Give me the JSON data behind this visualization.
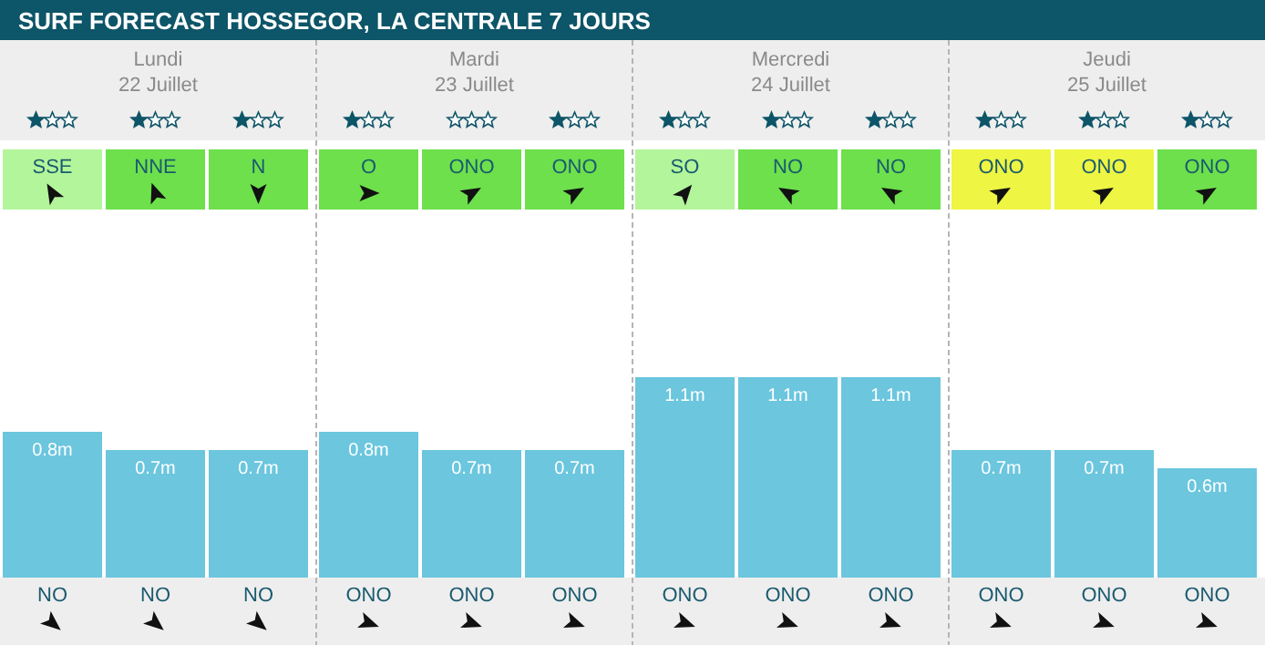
{
  "chart_data": {
    "type": "bar",
    "title": "SURF FORECAST HOSSEGOR, LA CENTRALE 7 JOURS",
    "categories": [
      "NO",
      "NO",
      "NO",
      "ONO",
      "ONO",
      "ONO",
      "ONO",
      "ONO",
      "ONO",
      "ONO",
      "ONO",
      "ONO"
    ],
    "values": [
      0.8,
      0.7,
      0.7,
      0.8,
      0.7,
      0.7,
      1.1,
      1.1,
      1.1,
      0.7,
      0.7,
      0.6
    ],
    "value_labels": [
      "0.8m",
      "0.7m",
      "0.7m",
      "0.8m",
      "0.7m",
      "0.7m",
      "1.1m",
      "1.1m",
      "1.1m",
      "0.7m",
      "0.7m",
      "0.6m"
    ],
    "color": "#6bc6de",
    "tick_labels": "x",
    "annotations": [
      "Lundi",
      "22 Juillet",
      "Mardi",
      "23 Juillet",
      "Mercredi",
      "24 Juillet",
      "Jeudi",
      "25 Juillet",
      "SSE",
      "NNE",
      "N",
      "O",
      "ONO",
      "ONO",
      "SO",
      "NO",
      "NO",
      "ONO",
      "ONO",
      "ONO"
    ]
  }
}
